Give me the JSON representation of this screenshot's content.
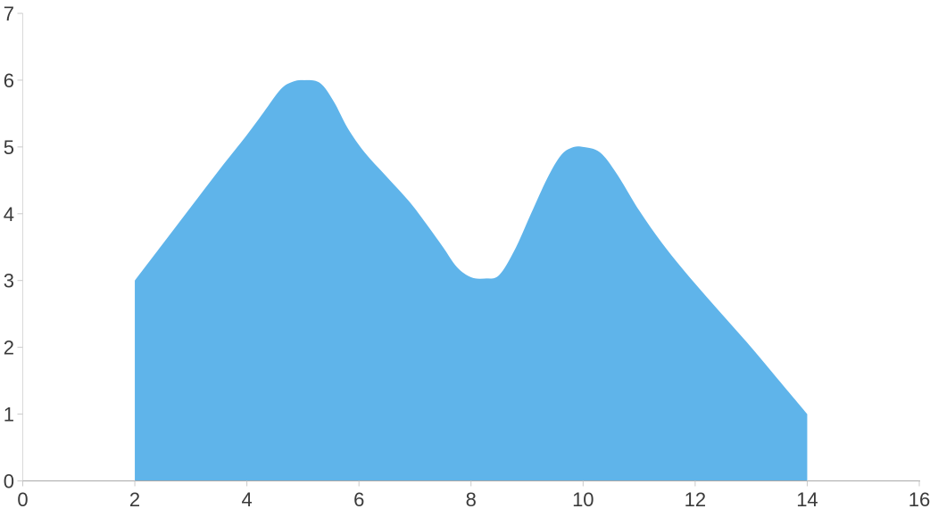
{
  "chart_data": {
    "type": "area",
    "smooth": true,
    "title": "",
    "xlabel": "",
    "ylabel": "",
    "xlim": [
      0,
      16
    ],
    "ylim": [
      0,
      7
    ],
    "x_ticks": [
      0,
      2,
      4,
      6,
      8,
      10,
      12,
      14,
      16
    ],
    "y_ticks": [
      0,
      1,
      2,
      3,
      4,
      5,
      6,
      7
    ],
    "grid": "off",
    "legend": "none",
    "series": [
      {
        "points": [
          [
            2,
            3
          ],
          [
            5,
            6
          ],
          [
            8,
            3
          ],
          [
            10,
            5
          ],
          [
            14,
            1
          ]
        ],
        "fill_color": "#5FB4EA"
      }
    ],
    "curve_samples": [
      [
        2,
        3
      ],
      [
        2.5,
        3.55
      ],
      [
        3,
        4.1
      ],
      [
        3.5,
        4.65
      ],
      [
        4,
        5.18
      ],
      [
        4.3,
        5.52
      ],
      [
        4.6,
        5.86
      ],
      [
        4.8,
        5.97
      ],
      [
        5,
        6
      ],
      [
        5.3,
        5.96
      ],
      [
        5.55,
        5.68
      ],
      [
        5.8,
        5.28
      ],
      [
        6.1,
        4.92
      ],
      [
        6.5,
        4.55
      ],
      [
        6.9,
        4.18
      ],
      [
        7.2,
        3.85
      ],
      [
        7.5,
        3.5
      ],
      [
        7.75,
        3.2
      ],
      [
        8,
        3.05
      ],
      [
        8.25,
        3.03
      ],
      [
        8.5,
        3.08
      ],
      [
        8.78,
        3.46
      ],
      [
        9.07,
        4
      ],
      [
        9.36,
        4.53
      ],
      [
        9.6,
        4.87
      ],
      [
        9.8,
        4.99
      ],
      [
        10,
        5
      ],
      [
        10.3,
        4.92
      ],
      [
        10.6,
        4.6
      ],
      [
        11,
        4.05
      ],
      [
        11.4,
        3.57
      ],
      [
        11.8,
        3.15
      ],
      [
        12.2,
        2.76
      ],
      [
        12.6,
        2.38
      ],
      [
        13,
        2
      ],
      [
        13.5,
        1.5
      ],
      [
        14,
        1
      ]
    ]
  },
  "colors": {
    "background": "#FFFFFF",
    "area_fill": "#5FB4EA",
    "x_axis_line": "#A9A9A9",
    "y_axis_line": "#D9D9D9",
    "tick": "#C9C9C9",
    "label": "#3A3A3A"
  }
}
